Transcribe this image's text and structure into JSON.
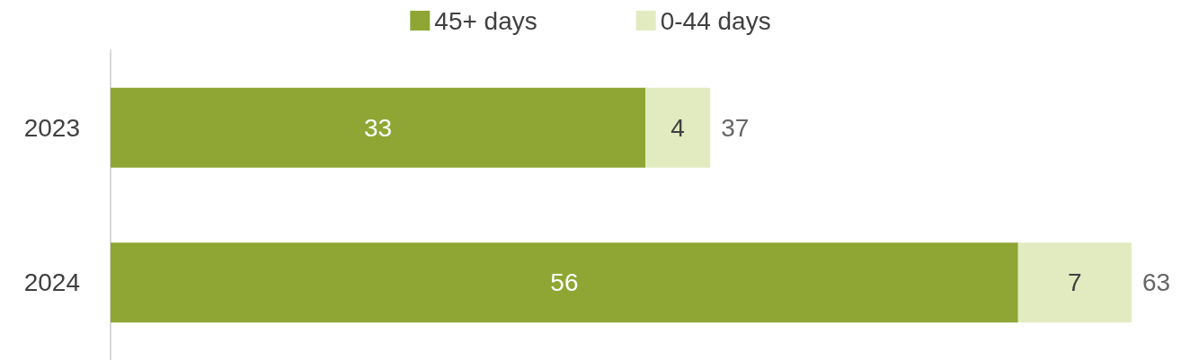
{
  "chart_data": {
    "type": "bar",
    "orientation": "horizontal",
    "stacked": true,
    "categories": [
      "2023",
      "2024"
    ],
    "series": [
      {
        "name": "45+ days",
        "color": "#8fa634",
        "values": [
          33,
          56
        ]
      },
      {
        "name": "0-44 days",
        "color": "#e2ebc0",
        "values": [
          4,
          7
        ]
      }
    ],
    "data_labels": true,
    "totals": [
      "37",
      "63"
    ],
    "legend": "top",
    "grid": false,
    "tick_labels": "y"
  }
}
